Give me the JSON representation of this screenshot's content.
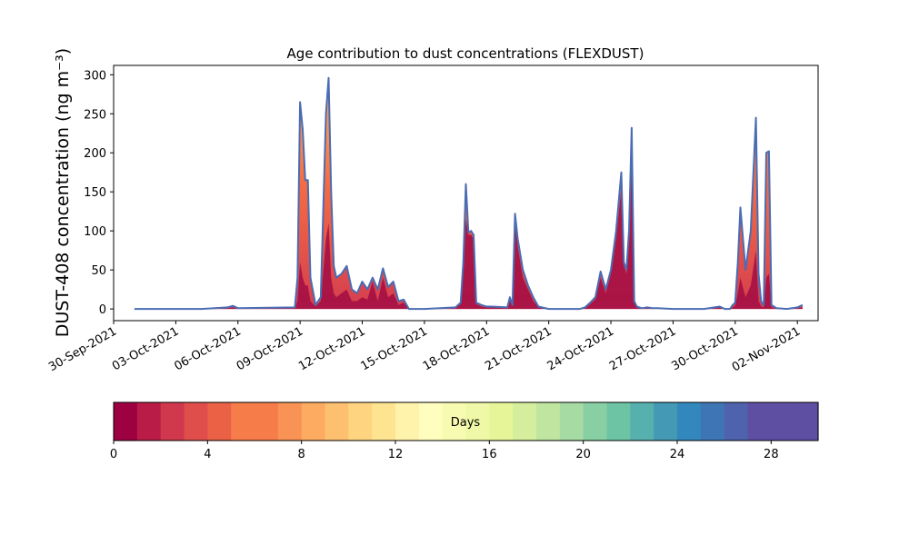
{
  "chart_data": {
    "type": "area",
    "title": "Age contribution to dust concentrations (FLEXDUST)",
    "ylabel": "DUST-408 concentration (ng m⁻³)",
    "xlabel": "",
    "ylim": [
      -15,
      312
    ],
    "xlim": [
      "2021-09-30",
      "2021-11-03"
    ],
    "yticks": [
      0,
      50,
      100,
      150,
      200,
      250,
      300
    ],
    "xticks": [
      "30-Sep-2021",
      "03-Oct-2021",
      "06-Oct-2021",
      "09-Oct-2021",
      "12-Oct-2021",
      "15-Oct-2021",
      "18-Oct-2021",
      "21-Oct-2021",
      "24-Oct-2021",
      "27-Oct-2021",
      "30-Oct-2021",
      "02-Nov-2021"
    ],
    "grid": false,
    "total_color": "#4a6cb3",
    "series": [
      {
        "x": [
          "2021-10-01 00:00",
          "2021-10-04 06:00",
          "2021-10-05 12:00",
          "2021-10-05 18:00",
          "2021-10-06 00:00",
          "2021-10-08 18:00",
          "2021-10-08 21:00",
          "2021-10-09 00:00",
          "2021-10-09 03:00",
          "2021-10-09 06:00",
          "2021-10-09 09:00",
          "2021-10-09 12:00",
          "2021-10-09 18:00",
          "2021-10-10 00:00",
          "2021-10-10 06:00",
          "2021-10-10 09:00",
          "2021-10-10 12:00",
          "2021-10-10 15:00",
          "2021-10-10 18:00",
          "2021-10-11 00:00",
          "2021-10-11 06:00",
          "2021-10-11 12:00",
          "2021-10-11 18:00",
          "2021-10-12 00:00",
          "2021-10-12 06:00",
          "2021-10-12 12:00",
          "2021-10-12 18:00",
          "2021-10-13 00:00",
          "2021-10-13 06:00",
          "2021-10-13 12:00",
          "2021-10-13 18:00",
          "2021-10-14 00:00",
          "2021-10-14 06:00",
          "2021-10-14 12:00",
          "2021-10-14 18:00",
          "2021-10-15 00:00",
          "2021-10-16 12:00",
          "2021-10-16 18:00",
          "2021-10-16 21:00",
          "2021-10-17 00:00",
          "2021-10-17 03:00",
          "2021-10-17 06:00",
          "2021-10-17 09:00",
          "2021-10-17 12:00",
          "2021-10-17 18:00",
          "2021-10-18 00:00",
          "2021-10-18 06:00",
          "2021-10-19 00:00",
          "2021-10-19 03:00",
          "2021-10-19 06:00",
          "2021-10-19 09:00",
          "2021-10-19 12:00",
          "2021-10-19 18:00",
          "2021-10-20 00:00",
          "2021-10-20 06:00",
          "2021-10-20 12:00",
          "2021-10-21 00:00",
          "2021-10-22 12:00",
          "2021-10-22 18:00",
          "2021-10-23 00:00",
          "2021-10-23 06:00",
          "2021-10-23 12:00",
          "2021-10-23 18:00",
          "2021-10-24 00:00",
          "2021-10-24 06:00",
          "2021-10-24 12:00",
          "2021-10-24 15:00",
          "2021-10-24 18:00",
          "2021-10-24 21:00",
          "2021-10-25 00:00",
          "2021-10-25 03:00",
          "2021-10-25 06:00",
          "2021-10-25 09:00",
          "2021-10-25 12:00",
          "2021-10-25 18:00",
          "2021-10-26 00:00",
          "2021-10-26 06:00",
          "2021-10-27 00:00",
          "2021-10-28 12:00",
          "2021-10-29 00:00",
          "2021-10-29 06:00",
          "2021-10-29 12:00",
          "2021-10-29 18:00",
          "2021-10-29 21:00",
          "2021-10-30 00:00",
          "2021-10-30 03:00",
          "2021-10-30 06:00",
          "2021-10-30 12:00",
          "2021-10-30 18:00",
          "2021-10-31 00:00",
          "2021-10-31 03:00",
          "2021-10-31 06:00",
          "2021-10-31 09:00",
          "2021-10-31 12:00",
          "2021-10-31 15:00",
          "2021-10-31 18:00",
          "2021-11-01 00:00",
          "2021-11-01 12:00",
          "2021-11-02 00:00",
          "2021-11-02 06:00"
        ],
        "total": [
          0,
          0,
          2,
          4,
          1,
          2,
          40,
          265,
          230,
          165,
          165,
          40,
          5,
          15,
          250,
          296,
          150,
          55,
          40,
          45,
          55,
          25,
          20,
          35,
          25,
          40,
          25,
          52,
          28,
          35,
          10,
          12,
          0,
          0,
          0,
          0,
          2,
          8,
          60,
          160,
          98,
          100,
          95,
          8,
          5,
          3,
          3,
          2,
          15,
          5,
          122,
          90,
          50,
          30,
          15,
          3,
          0,
          0,
          2,
          8,
          15,
          48,
          25,
          50,
          100,
          175,
          60,
          50,
          100,
          232,
          10,
          3,
          2,
          1,
          2,
          1,
          1,
          0,
          0,
          2,
          3,
          0,
          0,
          5,
          8,
          60,
          130,
          50,
          100,
          245,
          45,
          10,
          5,
          200,
          202,
          5,
          1,
          0,
          2,
          5
        ],
        "young": [
          0,
          0,
          1,
          2,
          0,
          1,
          10,
          60,
          40,
          30,
          30,
          10,
          3,
          10,
          90,
          110,
          40,
          20,
          15,
          20,
          25,
          10,
          10,
          15,
          12,
          35,
          10,
          40,
          15,
          20,
          5,
          8,
          0,
          0,
          0,
          0,
          1,
          6,
          55,
          115,
          95,
          95,
          90,
          6,
          3,
          2,
          2,
          1,
          12,
          4,
          110,
          80,
          40,
          25,
          10,
          2,
          0,
          0,
          1,
          6,
          12,
          40,
          20,
          45,
          90,
          155,
          55,
          45,
          95,
          215,
          8,
          2,
          1,
          1,
          1,
          0,
          0,
          0,
          0,
          1,
          2,
          0,
          0,
          2,
          4,
          20,
          40,
          15,
          30,
          75,
          10,
          3,
          2,
          40,
          45,
          2,
          0,
          0,
          1,
          2
        ]
      }
    ],
    "colorbar": {
      "label": "Days",
      "ticks": [
        0,
        4,
        8,
        12,
        16,
        20,
        24,
        28
      ],
      "min": 0,
      "max": 30,
      "colors": [
        "#9e0142",
        "#b91c47",
        "#d0384d",
        "#df4e4b",
        "#ea6146",
        "#f67c4a",
        "#f67c4a",
        "#f99355",
        "#fdab61",
        "#fdc070",
        "#fed481",
        "#fee491",
        "#fff2aa",
        "#fffebe",
        "#f7fbb1",
        "#eef8a6",
        "#e6f598",
        "#d4ee9d",
        "#bfe5a0",
        "#a6dba4",
        "#88cfa4",
        "#6cc4a4",
        "#56b0ad",
        "#449ab4",
        "#3288bd",
        "#3e76b5",
        "#4f62ad",
        "#5e4fa2",
        "#5e4fa2",
        "#5e4fa2"
      ]
    }
  }
}
